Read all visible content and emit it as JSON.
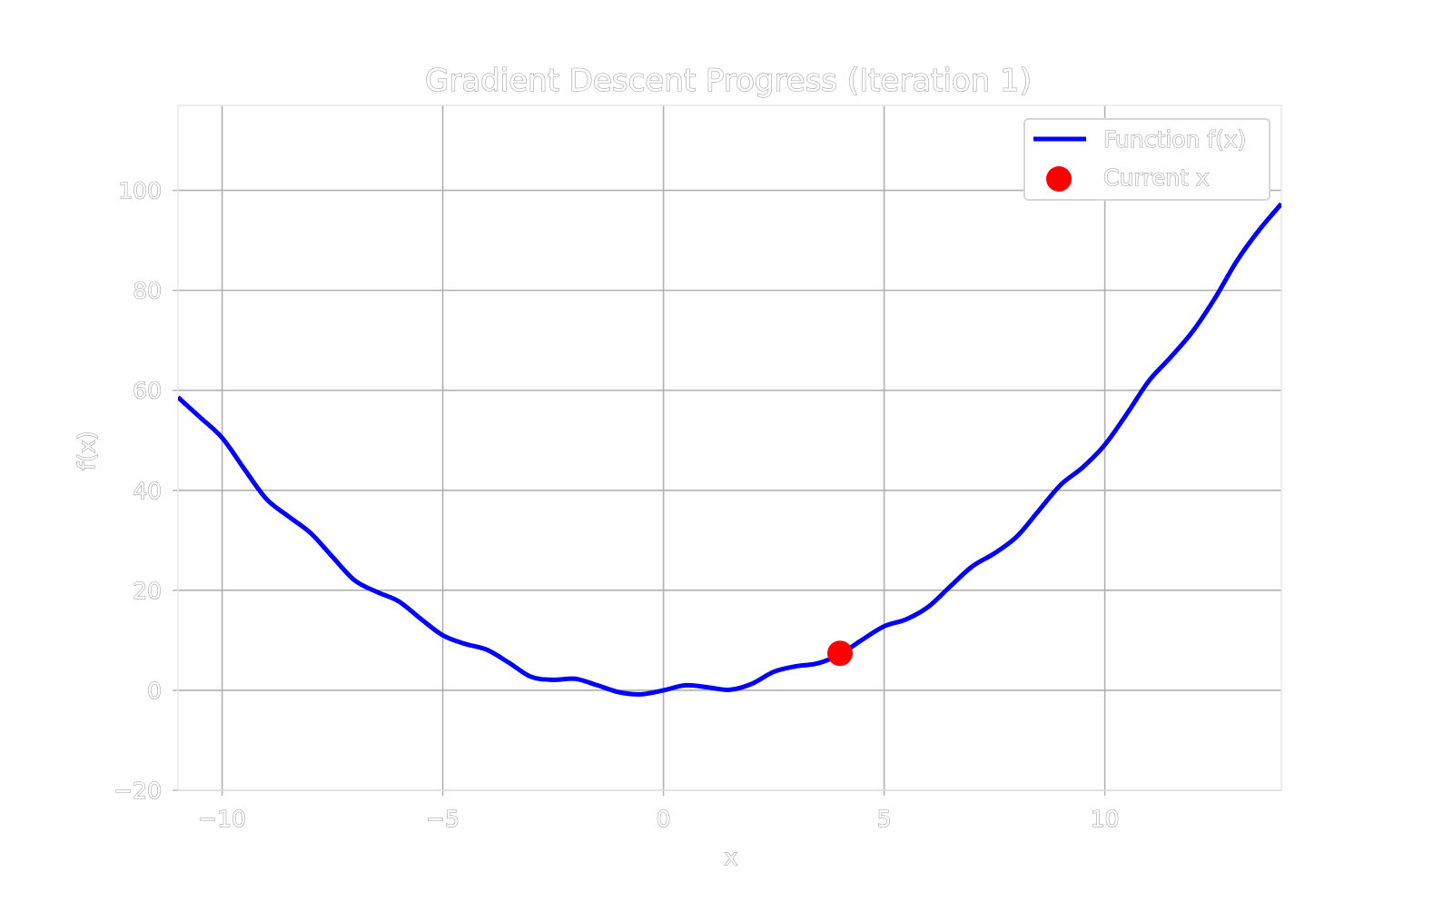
{
  "chart_data": {
    "type": "line",
    "title": "Gradient Descent Progress (Iteration 1)",
    "xlabel": "x",
    "ylabel": "f(x)",
    "xlim": [
      -11,
      14
    ],
    "ylim": [
      -20,
      117
    ],
    "xticks": [
      -10,
      -5,
      0,
      5,
      10
    ],
    "yticks": [
      -20,
      0,
      20,
      40,
      60,
      80,
      100
    ],
    "xtick_labels": [
      "−10",
      "−5",
      "0",
      "5",
      "10"
    ],
    "ytick_labels": [
      "−20",
      "0",
      "20",
      "40",
      "60",
      "80",
      "100"
    ],
    "grid": true,
    "legend_position": "top-right",
    "series": [
      {
        "name": "Function f(x)",
        "color": "#0000ff",
        "x": [
          -11,
          -10.5,
          -10,
          -9.5,
          -9,
          -8.5,
          -8,
          -7.5,
          -7,
          -6.5,
          -6,
          -5.5,
          -5,
          -4.5,
          -4,
          -3.5,
          -3,
          -2.5,
          -2,
          -1.5,
          -1,
          -0.5,
          0,
          0.5,
          1,
          1.5,
          2,
          2.5,
          3,
          3.5,
          4,
          4.5,
          5,
          5.5,
          6,
          6.5,
          7,
          7.5,
          8,
          8.5,
          9,
          9.5,
          10,
          10.5,
          11,
          11.5,
          12,
          12.5,
          13,
          13.5,
          14
        ],
        "y": [
          58.6,
          54.6,
          50.5,
          44.3,
          38.3,
          34.8,
          31.5,
          26.7,
          22.0,
          19.7,
          17.8,
          14.3,
          11.0,
          9.3,
          8.1,
          5.5,
          2.7,
          2.1,
          2.3,
          1.0,
          -0.4,
          -0.8,
          0.0,
          1.0,
          0.6,
          0.1,
          1.3,
          3.7,
          4.8,
          5.4,
          7.2,
          10.1,
          12.8,
          14.2,
          16.7,
          20.8,
          24.8,
          27.4,
          30.7,
          35.9,
          41.1,
          44.6,
          49.1,
          55.3,
          61.9,
          66.7,
          71.9,
          78.5,
          86.0,
          92.1,
          97.3
        ]
      },
      {
        "name": "Current x",
        "type": "scatter",
        "color": "#ff0000",
        "x": [
          4.0
        ],
        "y": [
          7.4
        ]
      }
    ]
  }
}
